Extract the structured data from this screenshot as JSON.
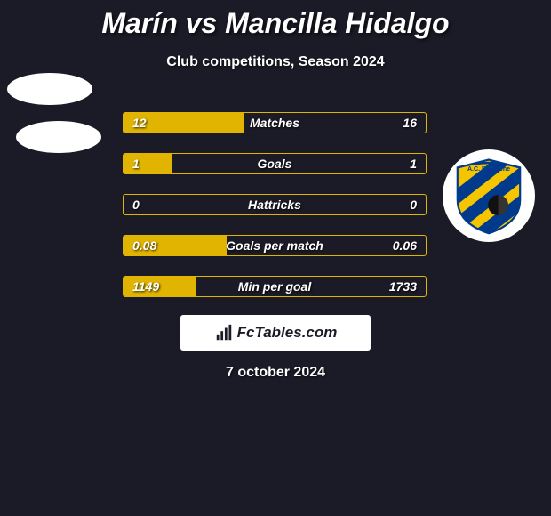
{
  "header": {
    "title": "Marín vs Mancilla Hidalgo",
    "subtitle": "Club competitions, Season 2024"
  },
  "colors": {
    "background": "#1b1b27",
    "bar_border": "#e0b400",
    "bar_fill": "#e0b400",
    "text": "#ffffff"
  },
  "bars": [
    {
      "label": "Matches",
      "left_val": "12",
      "right_val": "16",
      "left_pct": 40,
      "right_pct": 0
    },
    {
      "label": "Goals",
      "left_val": "1",
      "right_val": "1",
      "left_pct": 16,
      "right_pct": 0
    },
    {
      "label": "Hattricks",
      "left_val": "0",
      "right_val": "0",
      "left_pct": 0,
      "right_pct": 0
    },
    {
      "label": "Goals per match",
      "left_val": "0.08",
      "right_val": "0.06",
      "left_pct": 34,
      "right_pct": 0
    },
    {
      "label": "Min per goal",
      "left_val": "1149",
      "right_val": "1733",
      "left_pct": 24,
      "right_pct": 0
    }
  ],
  "brand": {
    "text": "FcTables.com"
  },
  "date": "7 october 2024",
  "badge_right": {
    "name": "A.C. Barnechea",
    "bg_circle": "#ffffff",
    "stripe_yellow": "#f5c500",
    "stripe_blue": "#003a8c",
    "ball": "#111111"
  }
}
